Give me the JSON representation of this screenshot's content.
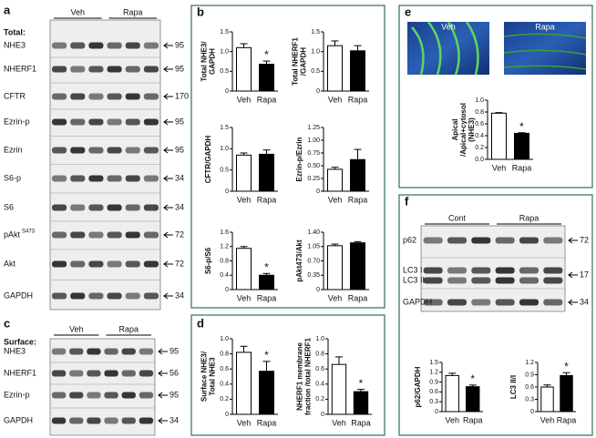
{
  "panels": [
    "a",
    "b",
    "c",
    "d",
    "e",
    "f"
  ],
  "blot_a": {
    "header": "Total:",
    "groups": [
      "Veh",
      "Rapa"
    ],
    "rows": [
      {
        "label": "NHE3",
        "marker": 95
      },
      {
        "label": "NHERF1",
        "marker": 95
      },
      {
        "label": "CFTR",
        "marker": 170
      },
      {
        "label": "Ezrin-p",
        "marker": 95
      },
      {
        "label": "Ezrin",
        "marker": 95
      },
      {
        "label": "S6-p",
        "marker": 34
      },
      {
        "label": "S6",
        "marker": 34
      },
      {
        "label": "pAkt",
        "sup": "S473",
        "marker": 72
      },
      {
        "label": "Akt",
        "marker": 72
      },
      {
        "label": "GAPDH",
        "marker": 34
      }
    ]
  },
  "blot_c": {
    "header": "Surface:",
    "groups": [
      "Veh",
      "Rapa"
    ],
    "rows": [
      {
        "label": "NHE3",
        "marker": 95
      },
      {
        "label": "NHERF1",
        "marker": 56
      },
      {
        "label": "Ezrin-p",
        "marker": 95
      },
      {
        "label": "GAPDH",
        "marker": 34
      }
    ]
  },
  "blot_f": {
    "groups": [
      "Cont",
      "Rapa"
    ],
    "rows": [
      {
        "label": "p62",
        "marker": 72
      },
      {
        "labels": [
          "LC3 I",
          "LC3 II"
        ],
        "marker": 17
      },
      {
        "label": "GAPDH",
        "marker": 34
      }
    ]
  },
  "images_e": {
    "labels": [
      "Veh",
      "Rapa"
    ]
  },
  "chart_data": [
    {
      "type": "bar",
      "ylabel": [
        "Total NHE3/",
        "GAPDH"
      ],
      "categories": [
        "Veh",
        "Rapa"
      ],
      "values": [
        1.1,
        0.68
      ],
      "errors": [
        0.1,
        0.08
      ],
      "colors": [
        "#ffffff",
        "#000000"
      ],
      "ylim": [
        0,
        1.5
      ],
      "yticks": [
        0,
        0.5,
        {
          "value": 1,
          "label": "1.0"
        },
        1.5
      ],
      "annotation": "*"
    },
    {
      "type": "bar",
      "ylabel": [
        "Total NHERF1",
        "/GAPDH"
      ],
      "categories": [
        "Veh",
        "Rapa"
      ],
      "values": [
        1.15,
        1.02
      ],
      "errors": [
        0.12,
        0.13
      ],
      "colors": [
        "#ffffff",
        "#000000"
      ],
      "ylim": [
        0,
        1.5
      ],
      "yticks": [
        0,
        0.5,
        {
          "value": 1,
          "label": "1.0"
        },
        1.5
      ]
    },
    {
      "type": "bar",
      "ylabel": [
        "CFTR/GAPDH"
      ],
      "categories": [
        "Veh",
        "Rapa"
      ],
      "values": [
        0.85,
        0.87
      ],
      "errors": [
        0.05,
        0.1
      ],
      "colors": [
        "#ffffff",
        "#000000"
      ],
      "ylim": [
        0,
        1.5
      ],
      "yticks": [
        0,
        0.5,
        {
          "value": 1,
          "label": "1.0"
        },
        1.5
      ]
    },
    {
      "type": "bar",
      "ylabel": [
        "Ezrin-p/Ezrin"
      ],
      "categories": [
        "Veh",
        "Rapa"
      ],
      "values": [
        0.43,
        0.62
      ],
      "errors": [
        0.04,
        0.2
      ],
      "colors": [
        "#ffffff",
        "#000000"
      ],
      "ylim": [
        0,
        1.25
      ],
      "yticks": [
        0,
        0.25,
        {
          "value": 0.5,
          "label": "0.50"
        },
        0.75,
        {
          "value": 1,
          "label": "1.00"
        },
        1.25
      ]
    },
    {
      "type": "bar",
      "ylabel": [
        "S6-p/S6"
      ],
      "categories": [
        "Veh",
        "Rapa"
      ],
      "values": [
        1.15,
        0.4
      ],
      "errors": [
        0.05,
        0.05
      ],
      "colors": [
        "#ffffff",
        "#000000"
      ],
      "ylim": [
        0,
        1.6
      ],
      "yticks": [
        0,
        0.4,
        0.8,
        1.2,
        1.6
      ],
      "annotation": "*"
    },
    {
      "type": "bar",
      "ylabel": [
        "pAkt473/Akt"
      ],
      "categories": [
        "Veh",
        "Rapa"
      ],
      "values": [
        1.07,
        1.14
      ],
      "errors": [
        0.04,
        0.03
      ],
      "colors": [
        "#ffffff",
        "#000000"
      ],
      "ylim": [
        0,
        1.4
      ],
      "yticks": [
        0,
        0.35,
        {
          "value": 0.7,
          "label": "0.70"
        },
        1.05,
        {
          "value": 1.4,
          "label": "1.40"
        }
      ]
    },
    {
      "type": "bar",
      "ylabel": [
        "Surface NHE3/",
        "Total NHE3"
      ],
      "categories": [
        "Veh",
        "Rapa"
      ],
      "values": [
        0.82,
        0.57
      ],
      "errors": [
        0.08,
        0.13
      ],
      "colors": [
        "#ffffff",
        "#000000"
      ],
      "ylim": [
        0,
        1
      ],
      "yticks": [
        0,
        0.2,
        0.4,
        0.6,
        0.8,
        {
          "value": 1,
          "label": "1.0"
        }
      ],
      "annotation": "*"
    },
    {
      "type": "bar",
      "ylabel": [
        "NHERF1 membrane",
        "fraction /total NHERF1"
      ],
      "categories": [
        "Veh",
        "Rapa"
      ],
      "values": [
        0.66,
        0.3
      ],
      "errors": [
        0.1,
        0.03
      ],
      "colors": [
        "#ffffff",
        "#000000"
      ],
      "ylim": [
        0,
        1
      ],
      "yticks": [
        0,
        0.2,
        0.4,
        0.6,
        0.8,
        {
          "value": 1,
          "label": "1.0"
        }
      ],
      "annotation": "*"
    },
    {
      "type": "bar",
      "ylabel": [
        "Apical",
        "/Apical+cytosol",
        "(NHE3)"
      ],
      "categories": [
        "Veh",
        "Rapa"
      ],
      "values": [
        0.78,
        0.44
      ],
      "errors": [
        0.01,
        0.01
      ],
      "colors": [
        "#ffffff",
        "#000000"
      ],
      "ylim": [
        0,
        1
      ],
      "yticks": [
        {
          "value": 0,
          "label": "0.0"
        },
        0.2,
        0.4,
        0.6,
        0.8,
        {
          "value": 1,
          "label": "1.0"
        }
      ],
      "annotation": "*"
    },
    {
      "type": "bar",
      "ylabel": [
        "p62/GAPDH"
      ],
      "categories": [
        "Veh",
        "Rapa"
      ],
      "values": [
        1.1,
        0.76
      ],
      "errors": [
        0.07,
        0.05
      ],
      "colors": [
        "#ffffff",
        "#000000"
      ],
      "ylim": [
        0,
        1.5
      ],
      "yticks": [
        0,
        0.3,
        0.6,
        0.9,
        1.2,
        1.5
      ],
      "annotation": "*"
    },
    {
      "type": "bar",
      "ylabel": [
        "LC3 II/I"
      ],
      "categories": [
        "Veh",
        "Rapa"
      ],
      "values": [
        0.6,
        0.88
      ],
      "errors": [
        0.05,
        0.07
      ],
      "colors": [
        "#ffffff",
        "#000000"
      ],
      "ylim": [
        0,
        1.2
      ],
      "yticks": [
        0,
        0.3,
        0.6,
        0.9,
        1.2
      ],
      "annotation": "*"
    }
  ]
}
